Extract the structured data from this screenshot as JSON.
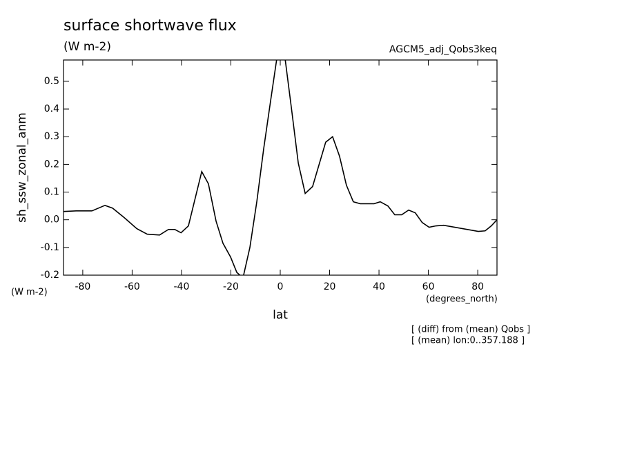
{
  "chart_data": {
    "type": "line",
    "title": "surface shortwave flux",
    "subtitle": "(W m-2)",
    "run_label": "AGCM5_adj_Qobs3keq",
    "y_label": "sh_ssw_zonal_anm",
    "y_units": "(W m-2)",
    "x_label": "lat",
    "x_units": "(degrees_north)",
    "notes": [
      "[ (diff) from (mean) Qobs ]",
      "[ (mean) lon:0..357.188 ]"
    ],
    "xlim": [
      -87.8,
      87.8
    ],
    "xticks": [
      -80,
      -60,
      -40,
      -20,
      0,
      20,
      40,
      60,
      80
    ],
    "ylim": [
      -0.2,
      0.577
    ],
    "yticks": [
      -0.2,
      -0.1,
      {
        "value": 0,
        "label": "0.0"
      },
      0.1,
      0.2,
      0.3,
      0.4,
      0.5
    ],
    "series": [
      {
        "color": "#000000",
        "x": [
          -87.8,
          -82.7,
          -76.3,
          -71,
          -67.9,
          -63.1,
          -58.1,
          -53.9,
          -48.9,
          -45.3,
          -42.7,
          -40.2,
          -37.2,
          -31.8,
          -29.1,
          -26,
          -23.2,
          -20.1,
          -17.6,
          -15.1,
          -12.3,
          -9.5,
          -6.7,
          -3.9,
          -1.1,
          1.7,
          4.5,
          7.3,
          10.1,
          13.1,
          18.4,
          21.2,
          24,
          26.8,
          29.6,
          32.4,
          38,
          40.5,
          43.6,
          46.4,
          49.2,
          52,
          54.7,
          57.5,
          60.3,
          63.1,
          66.2,
          80.2,
          83,
          85.5,
          87.8
        ],
        "values": [
          0.03,
          0.032,
          0.032,
          0.052,
          0.042,
          0.007,
          -0.032,
          -0.052,
          -0.055,
          -0.035,
          -0.035,
          -0.047,
          -0.022,
          0.174,
          0.13,
          -0.005,
          -0.085,
          -0.135,
          -0.19,
          -0.21,
          -0.1,
          0.065,
          0.257,
          0.43,
          0.6,
          0.6,
          0.405,
          0.205,
          0.095,
          0.12,
          0.28,
          0.3,
          0.23,
          0.125,
          0.065,
          0.058,
          0.058,
          0.065,
          0.05,
          0.018,
          0.018,
          0.035,
          0.025,
          -0.01,
          -0.027,
          -0.022,
          -0.02,
          -0.042,
          -0.04,
          -0.022,
          0
        ]
      }
    ]
  }
}
